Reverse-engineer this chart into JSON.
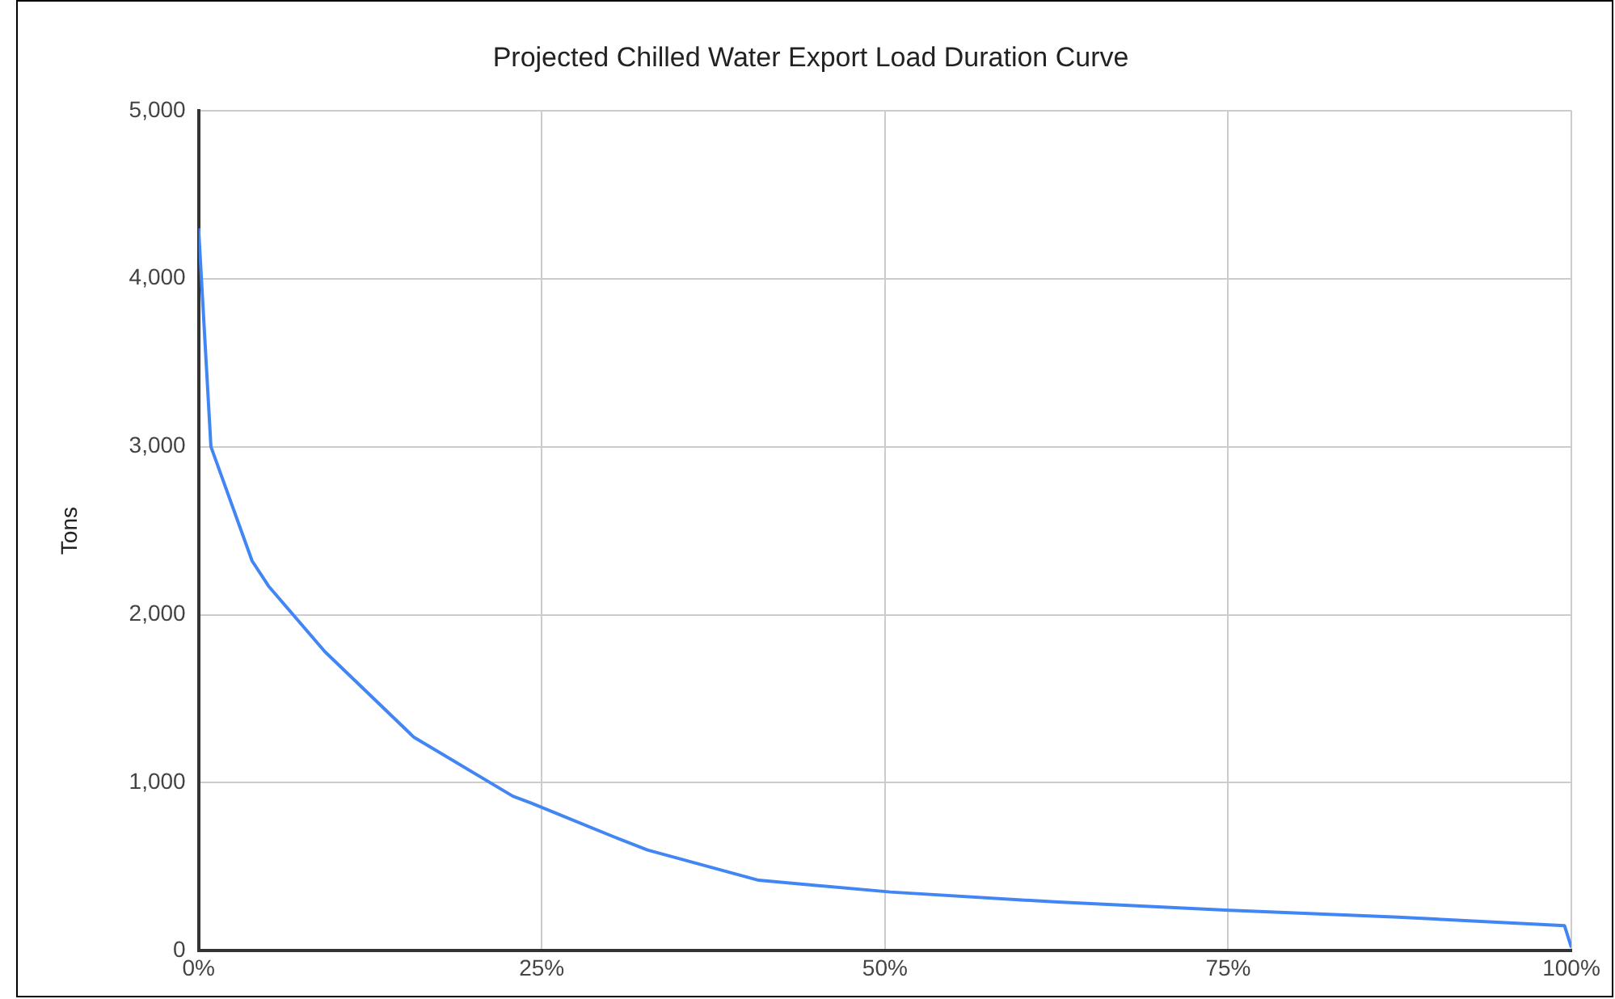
{
  "chart_data": {
    "type": "line",
    "title": "Projected Chilled Water Export Load Duration Curve",
    "ylabel": "Tons",
    "x": [
      0,
      0.9,
      3.9,
      5.1,
      9.2,
      15.7,
      22.9,
      24.2,
      30.2,
      32.7,
      40.8,
      50.4,
      62.6,
      75.5,
      87.4,
      99.5,
      100
    ],
    "series": [
      {
        "color": "#4285f4",
        "values": [
          4300,
          3000,
          2320,
          2170,
          1780,
          1270,
          920,
          880,
          680,
          600,
          420,
          350,
          290,
          240,
          200,
          150,
          20
        ]
      }
    ],
    "xlim": [
      0,
      100
    ],
    "xticks": [
      {
        "value": 0,
        "label": "0%"
      },
      {
        "value": 25,
        "label": "25%"
      },
      {
        "value": 50,
        "label": "50%"
      },
      {
        "value": 75,
        "label": "75%"
      },
      {
        "value": 100,
        "label": "100%"
      }
    ],
    "ylim": [
      0,
      5000
    ],
    "yticks": [
      {
        "value": 0,
        "label": "0"
      },
      {
        "value": 1000,
        "label": "1,000"
      },
      {
        "value": 2000,
        "label": "2,000"
      },
      {
        "value": 3000,
        "label": "3,000"
      },
      {
        "value": 4000,
        "label": "4,000"
      },
      {
        "value": 5000,
        "label": "5,000"
      }
    ],
    "grid": true,
    "legend": false,
    "marker": "none",
    "line_style": "solid"
  }
}
